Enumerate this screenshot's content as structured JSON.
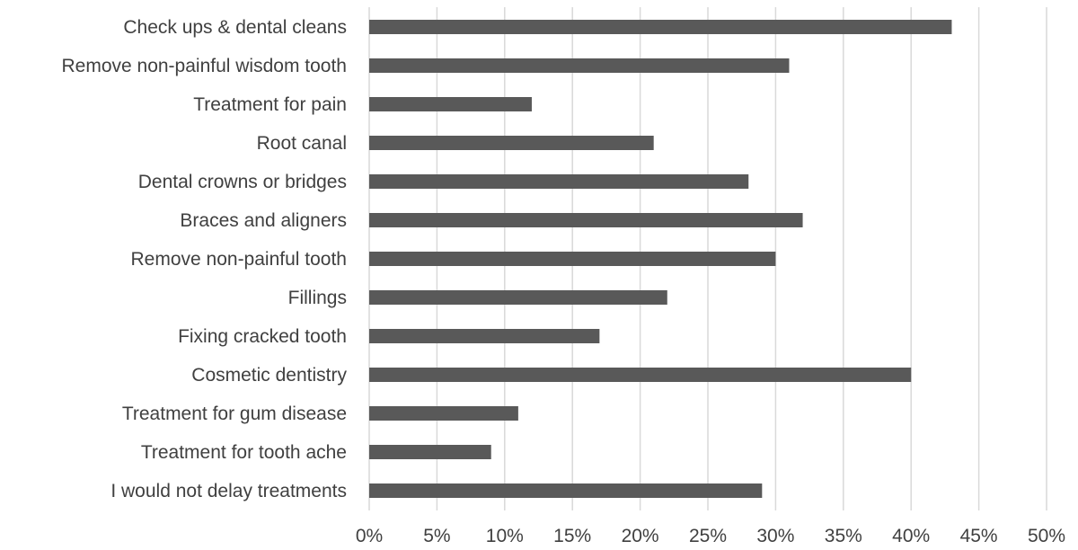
{
  "chart_data": {
    "type": "bar",
    "orientation": "horizontal",
    "title": "",
    "xlabel": "",
    "ylabel": "",
    "categories": [
      "Check ups & dental cleans",
      "Remove non-painful wisdom tooth",
      "Treatment for pain",
      "Root canal",
      "Dental crowns or bridges",
      "Braces and aligners",
      "Remove non-painful tooth",
      "Fillings",
      "Fixing cracked tooth",
      "Cosmetic dentistry",
      "Treatment for gum disease",
      "Treatment for tooth ache",
      "I would not delay treatments"
    ],
    "values": [
      43,
      31,
      12,
      21,
      28,
      32,
      30,
      22,
      17,
      40,
      11,
      9,
      29
    ],
    "value_unit": "%",
    "xlim": [
      0,
      50
    ],
    "xticks": [
      "0%",
      "5%",
      "10%",
      "15%",
      "20%",
      "25%",
      "30%",
      "35%",
      "40%",
      "45%",
      "50%"
    ],
    "grid": "vertical",
    "legend": "none",
    "bar_color": "#595959"
  }
}
